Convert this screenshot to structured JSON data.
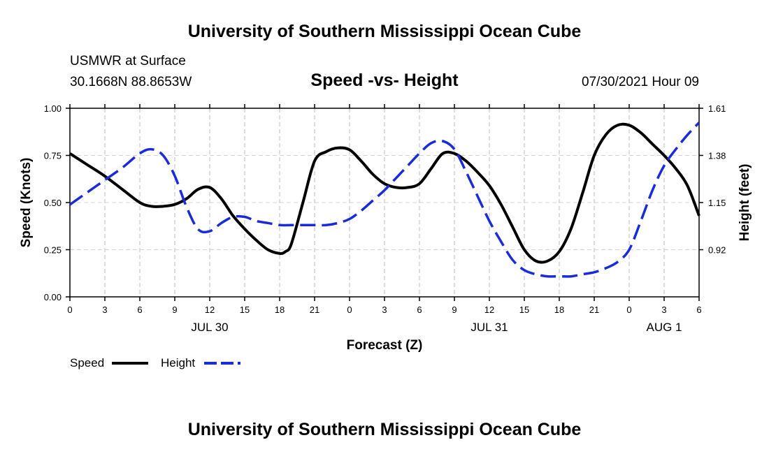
{
  "page": {
    "top_title": "University of Southern Mississippi Ocean Cube",
    "bottom_title": "University of Southern Mississippi Ocean Cube",
    "station": "USMWR at Surface",
    "coordinates": "30.1668N  88.8653W",
    "subtitle": "Speed -vs- Height",
    "datetime": "07/30/2021 Hour 09"
  },
  "chart_data": {
    "type": "line",
    "title": "Speed -vs- Height",
    "xlabel": "Forecast (Z)",
    "ylabel": "Speed (Knots)",
    "y2label": "Height (feet)",
    "xlim": [
      0,
      54
    ],
    "ylim": [
      0,
      1
    ],
    "y2lim": [
      0.69,
      1.61
    ],
    "grid": true,
    "x_ticks": [
      0,
      3,
      6,
      9,
      12,
      15,
      18,
      21,
      24,
      27,
      30,
      33,
      36,
      39,
      42,
      45,
      48,
      51,
      54
    ],
    "x_tick_labels": [
      "0",
      "3",
      "6",
      "9",
      "12",
      "15",
      "18",
      "21",
      "0",
      "3",
      "6",
      "9",
      "12",
      "15",
      "18",
      "21",
      "0",
      "3",
      "6"
    ],
    "y_ticks": [
      0,
      0.25,
      0.5,
      0.75,
      1.0
    ],
    "y_tick_labels": [
      "0.00",
      "0.25",
      "0.50",
      "0.75",
      "1.00"
    ],
    "y2_ticks": [
      0.92,
      1.15,
      1.38,
      1.61
    ],
    "y2_tick_labels": [
      "0.92",
      "1.15",
      "1.38",
      "1.61"
    ],
    "date_labels": [
      {
        "x": 12,
        "text": "JUL 30"
      },
      {
        "x": 36,
        "text": "JUL 31"
      },
      {
        "x": 51,
        "text": "AUG 1"
      }
    ],
    "legend": {
      "position": "bottom-left",
      "speed_label": "Speed",
      "height_label": "Height"
    },
    "series": [
      {
        "name": "Speed",
        "axis": "left",
        "color": "#000000",
        "dashed": false,
        "x": [
          0,
          1.5,
          3,
          4.5,
          6,
          7,
          8,
          9,
          10,
          11,
          12,
          13,
          14,
          15,
          16,
          17,
          18,
          18.5,
          19,
          20,
          21,
          22,
          23,
          24,
          25,
          26,
          27,
          28,
          29,
          30,
          31,
          32,
          33,
          34,
          35,
          36,
          37,
          38,
          39,
          40,
          41,
          42,
          43,
          44,
          45,
          46,
          47,
          48,
          49,
          50,
          51,
          52,
          53,
          54
        ],
        "values": [
          0.76,
          0.7,
          0.64,
          0.57,
          0.5,
          0.48,
          0.48,
          0.49,
          0.52,
          0.57,
          0.58,
          0.52,
          0.43,
          0.36,
          0.3,
          0.25,
          0.23,
          0.24,
          0.28,
          0.5,
          0.72,
          0.77,
          0.79,
          0.78,
          0.72,
          0.65,
          0.6,
          0.58,
          0.58,
          0.6,
          0.68,
          0.76,
          0.76,
          0.72,
          0.66,
          0.59,
          0.49,
          0.37,
          0.25,
          0.19,
          0.19,
          0.24,
          0.36,
          0.55,
          0.75,
          0.86,
          0.91,
          0.91,
          0.87,
          0.81,
          0.75,
          0.68,
          0.59,
          0.43
        ]
      },
      {
        "name": "Height",
        "axis": "right",
        "color": "#1a2bd8",
        "dashed": true,
        "x": [
          0,
          1.5,
          3,
          4.5,
          6,
          7,
          8,
          9,
          10,
          11,
          12,
          13,
          14,
          15,
          16,
          17,
          18,
          19,
          20,
          21,
          22,
          23,
          24,
          25,
          26,
          27,
          28,
          29,
          30,
          31,
          32,
          33,
          34,
          35,
          36,
          37,
          38,
          39,
          40,
          41,
          42,
          43,
          44,
          45,
          46,
          47,
          48,
          49,
          50,
          51,
          52,
          53,
          54
        ],
        "values": [
          1.14,
          1.2,
          1.26,
          1.32,
          1.39,
          1.41,
          1.38,
          1.28,
          1.13,
          1.02,
          1.01,
          1.05,
          1.08,
          1.08,
          1.06,
          1.05,
          1.04,
          1.04,
          1.04,
          1.04,
          1.04,
          1.05,
          1.07,
          1.11,
          1.16,
          1.21,
          1.27,
          1.33,
          1.39,
          1.44,
          1.45,
          1.41,
          1.3,
          1.18,
          1.06,
          0.96,
          0.87,
          0.82,
          0.8,
          0.79,
          0.79,
          0.79,
          0.8,
          0.81,
          0.83,
          0.86,
          0.92,
          1.06,
          1.21,
          1.33,
          1.41,
          1.48,
          1.54
        ]
      }
    ]
  }
}
